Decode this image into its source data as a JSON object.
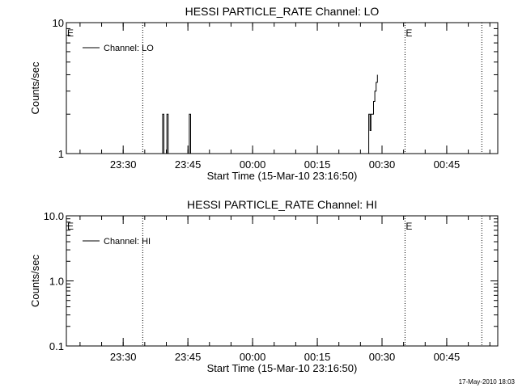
{
  "timestamp": "17-May-2010 18:03",
  "chart_data": [
    {
      "type": "line",
      "title": "HESSI PARTICLE_RATE Channel: LO",
      "xlabel": "Start Time (15-Mar-10 23:16:50)",
      "ylabel": "Counts/sec",
      "yscale": "log",
      "ylim": [
        1,
        10
      ],
      "xlim_minutes_after_start": [
        0,
        100
      ],
      "y_tick_labels": [
        {
          "value": 1,
          "label": "1"
        },
        {
          "value": 10,
          "label": "10"
        }
      ],
      "x_tick_labels": [
        {
          "time": "23:30",
          "minutes_after_start": 13.17
        },
        {
          "time": "23:45",
          "minutes_after_start": 28.17
        },
        {
          "time": "00:00",
          "minutes_after_start": 43.17
        },
        {
          "time": "00:15",
          "minutes_after_start": 58.17
        },
        {
          "time": "00:30",
          "minutes_after_start": 73.17
        },
        {
          "time": "00:45",
          "minutes_after_start": 88.17
        }
      ],
      "markers": [
        {
          "minutes_after_start": 0,
          "label": "E"
        },
        {
          "minutes_after_start": 17.7,
          "label": ""
        },
        {
          "minutes_after_start": 78.5,
          "label": "E"
        },
        {
          "minutes_after_start": 96.3,
          "label": ""
        }
      ],
      "legend": {
        "position": "top-left"
      },
      "series": [
        {
          "name": "Channel: LO",
          "segments": [
            [
              [
                22.0,
                1
              ],
              [
                22.3,
                2
              ],
              [
                22.6,
                1
              ],
              [
                22.9,
                1
              ],
              [
                23.3,
                2
              ],
              [
                23.6,
                1
              ]
            ],
            [
              [
                28.2,
                1
              ],
              [
                28.5,
                2
              ],
              [
                28.8,
                1
              ]
            ],
            [
              [
                69.9,
                1
              ],
              [
                70.1,
                2
              ],
              [
                70.4,
                1.5
              ],
              [
                70.6,
                2
              ],
              [
                71.0,
                2
              ],
              [
                71.2,
                2.5
              ],
              [
                71.5,
                3
              ],
              [
                71.8,
                3.5
              ],
              [
                72.1,
                4
              ]
            ]
          ]
        }
      ]
    },
    {
      "type": "line",
      "title": "HESSI PARTICLE_RATE Channel: HI",
      "xlabel": "Start Time (15-Mar-10 23:16:50)",
      "ylabel": "Counts/sec",
      "yscale": "log",
      "ylim": [
        0.1,
        10
      ],
      "xlim_minutes_after_start": [
        0,
        100
      ],
      "y_tick_labels": [
        {
          "value": 0.1,
          "label": "0.1"
        },
        {
          "value": 1,
          "label": "1.0"
        },
        {
          "value": 10,
          "label": "10.0"
        }
      ],
      "x_tick_labels": [
        {
          "time": "23:30",
          "minutes_after_start": 13.17
        },
        {
          "time": "23:45",
          "minutes_after_start": 28.17
        },
        {
          "time": "00:00",
          "minutes_after_start": 43.17
        },
        {
          "time": "00:15",
          "minutes_after_start": 58.17
        },
        {
          "time": "00:30",
          "minutes_after_start": 73.17
        },
        {
          "time": "00:45",
          "minutes_after_start": 88.17
        }
      ],
      "markers": [
        {
          "minutes_after_start": 0,
          "label": "E"
        },
        {
          "minutes_after_start": 17.7,
          "label": ""
        },
        {
          "minutes_after_start": 78.5,
          "label": "E"
        },
        {
          "minutes_after_start": 96.3,
          "label": ""
        }
      ],
      "legend": {
        "position": "top-left"
      },
      "series": [
        {
          "name": "Channel: HI",
          "segments": []
        }
      ]
    }
  ]
}
